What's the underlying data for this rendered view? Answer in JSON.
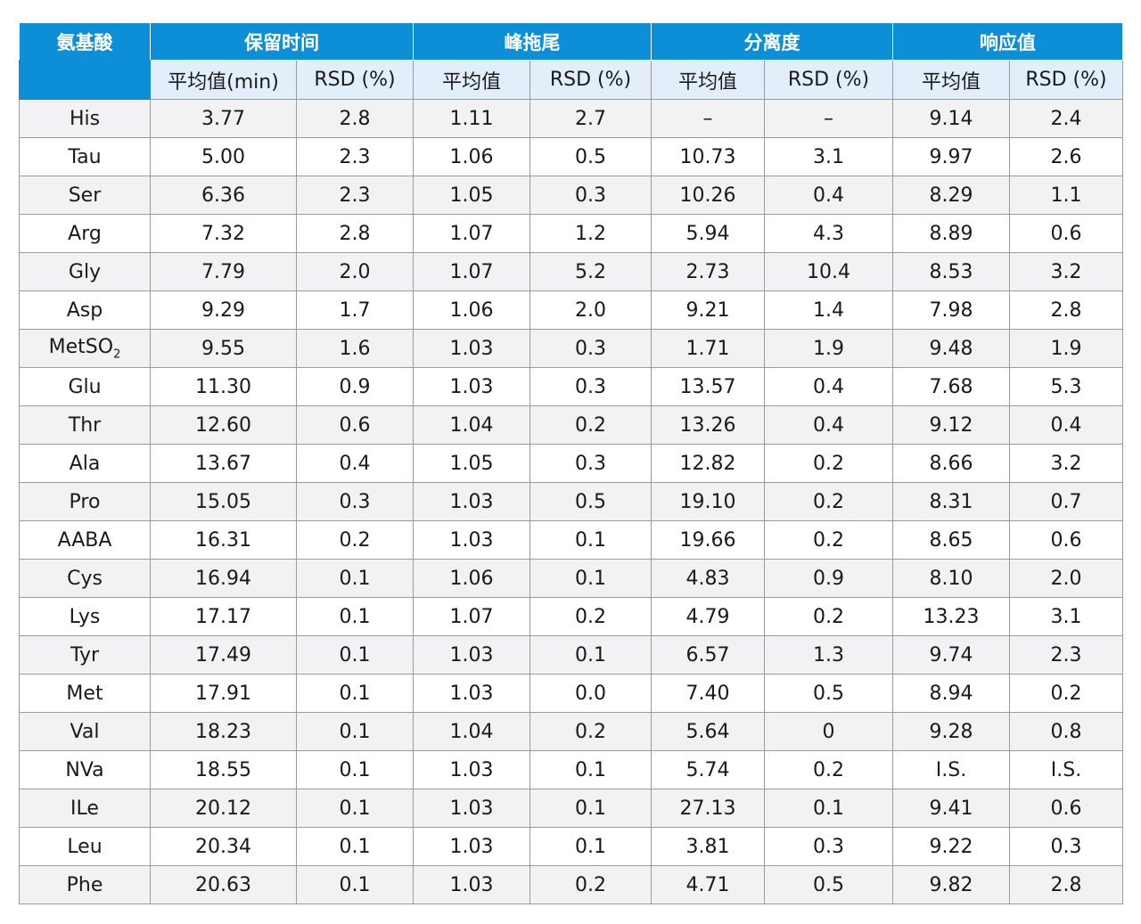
{
  "header": {
    "amino_acid": "氨基酸",
    "groups": [
      "保留时间",
      "峰拖尾",
      "分离度",
      "响应值"
    ],
    "subheaders": [
      "平均值(min)",
      "RSD (%)",
      "平均值",
      "RSD (%)",
      "平均值",
      "RSD (%)",
      "平均值",
      "RSD (%)"
    ]
  },
  "rows": [
    {
      "name": "His",
      "cells": [
        "3.77",
        "2.8",
        "1.11",
        "2.7",
        "–",
        "–",
        "9.14",
        "2.4"
      ]
    },
    {
      "name": "Tau",
      "cells": [
        "5.00",
        "2.3",
        "1.06",
        "0.5",
        "10.73",
        "3.1",
        "9.97",
        "2.6"
      ]
    },
    {
      "name": "Ser",
      "cells": [
        "6.36",
        "2.3",
        "1.05",
        "0.3",
        "10.26",
        "0.4",
        "8.29",
        "1.1"
      ]
    },
    {
      "name": "Arg",
      "cells": [
        "7.32",
        "2.8",
        "1.07",
        "1.2",
        "5.94",
        "4.3",
        "8.89",
        "0.6"
      ]
    },
    {
      "name": "Gly",
      "cells": [
        "7.79",
        "2.0",
        "1.07",
        "5.2",
        "2.73",
        "10.4",
        "8.53",
        "3.2"
      ]
    },
    {
      "name": "Asp",
      "cells": [
        "9.29",
        "1.7",
        "1.06",
        "2.0",
        "9.21",
        "1.4",
        "7.98",
        "2.8"
      ]
    },
    {
      "name": "MetSO",
      "sub": "2",
      "cells": [
        "9.55",
        "1.6",
        "1.03",
        "0.3",
        "1.71",
        "1.9",
        "9.48",
        "1.9"
      ]
    },
    {
      "name": "Glu",
      "cells": [
        "11.30",
        "0.9",
        "1.03",
        "0.3",
        "13.57",
        "0.4",
        "7.68",
        "5.3"
      ]
    },
    {
      "name": "Thr",
      "cells": [
        "12.60",
        "0.6",
        "1.04",
        "0.2",
        "13.26",
        "0.4",
        "9.12",
        "0.4"
      ]
    },
    {
      "name": "Ala",
      "cells": [
        "13.67",
        "0.4",
        "1.05",
        "0.3",
        "12.82",
        "0.2",
        "8.66",
        "3.2"
      ]
    },
    {
      "name": "Pro",
      "cells": [
        "15.05",
        "0.3",
        "1.03",
        "0.5",
        "19.10",
        "0.2",
        "8.31",
        "0.7"
      ]
    },
    {
      "name": "AABA",
      "cells": [
        "16.31",
        "0.2",
        "1.03",
        "0.1",
        "19.66",
        "0.2",
        "8.65",
        "0.6"
      ]
    },
    {
      "name": "Cys",
      "cells": [
        "16.94",
        "0.1",
        "1.06",
        "0.1",
        "4.83",
        "0.9",
        "8.10",
        "2.0"
      ]
    },
    {
      "name": "Lys",
      "cells": [
        "17.17",
        "0.1",
        "1.07",
        "0.2",
        "4.79",
        "0.2",
        "13.23",
        "3.1"
      ]
    },
    {
      "name": "Tyr",
      "cells": [
        "17.49",
        "0.1",
        "1.03",
        "0.1",
        "6.57",
        "1.3",
        "9.74",
        "2.3"
      ]
    },
    {
      "name": "Met",
      "cells": [
        "17.91",
        "0.1",
        "1.03",
        "0.0",
        "7.40",
        "0.5",
        "8.94",
        "0.2"
      ]
    },
    {
      "name": "Val",
      "cells": [
        "18.23",
        "0.1",
        "1.04",
        "0.2",
        "5.64",
        "0",
        "9.28",
        "0.8"
      ]
    },
    {
      "name": "NVa",
      "cells": [
        "18.55",
        "0.1",
        "1.03",
        "0.1",
        "5.74",
        "0.2",
        "I.S.",
        "I.S."
      ]
    },
    {
      "name": "ILe",
      "cells": [
        "20.12",
        "0.1",
        "1.03",
        "0.1",
        "27.13",
        "0.1",
        "9.41",
        "0.6"
      ]
    },
    {
      "name": "Leu",
      "cells": [
        "20.34",
        "0.1",
        "1.03",
        "0.1",
        "3.81",
        "0.3",
        "9.22",
        "0.3"
      ]
    },
    {
      "name": "Phe",
      "cells": [
        "20.63",
        "0.1",
        "1.03",
        "0.2",
        "4.71",
        "0.5",
        "9.82",
        "2.8"
      ]
    }
  ]
}
